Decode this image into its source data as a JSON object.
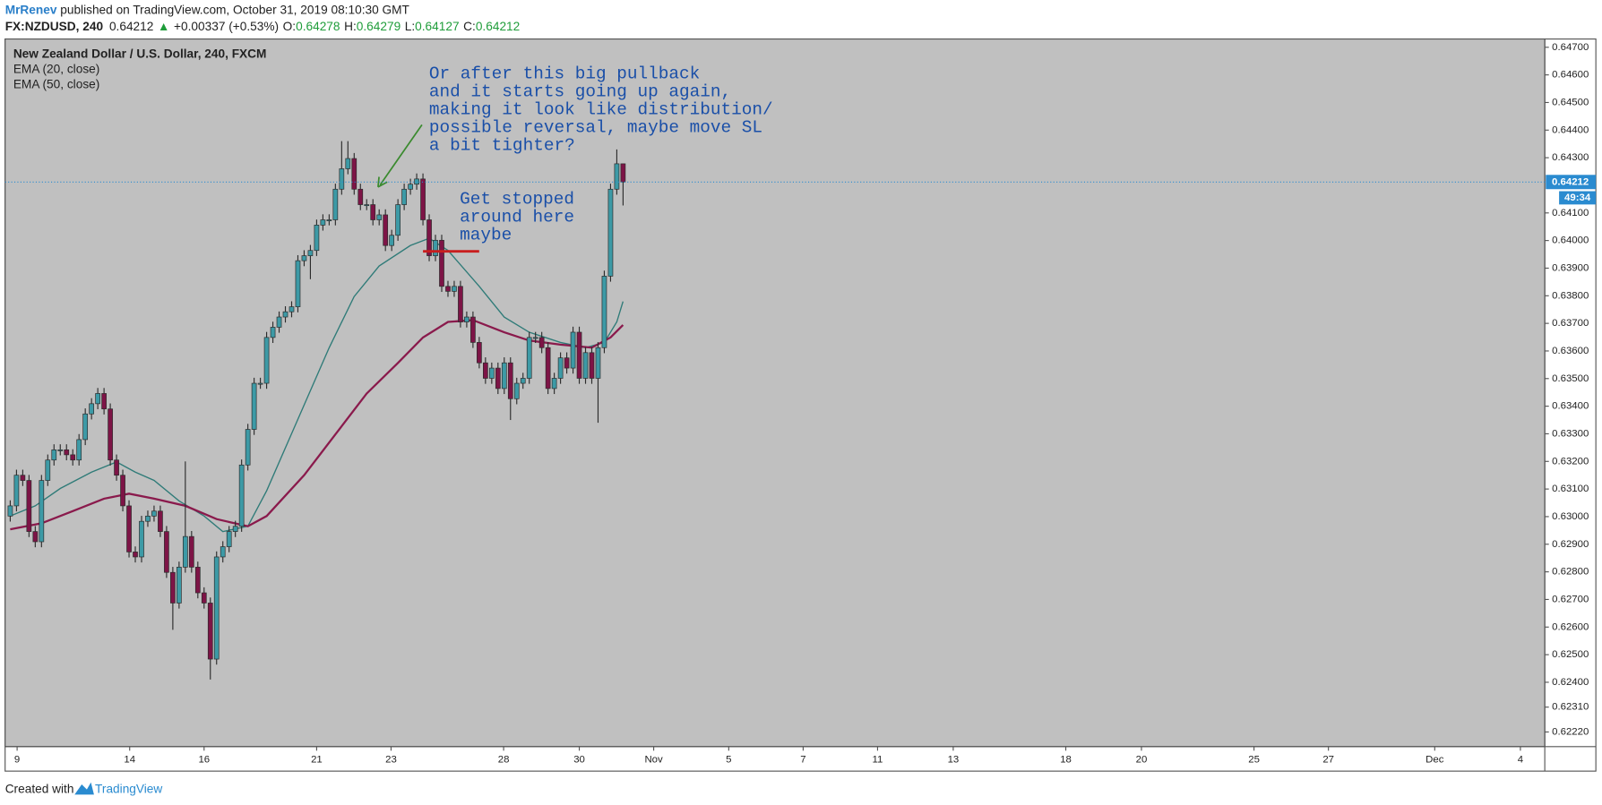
{
  "header": {
    "author": "MrRenev",
    "published_text": " published on TradingView.com, October 31, 2019 08:10:30 GMT",
    "symbol": "FX:NZDUSD, 240",
    "last": "0.64212",
    "change_arrow": "▲",
    "change": "+0.00337 (+0.53%)",
    "ohlc": [
      {
        "label": "O:",
        "value": "0.64278"
      },
      {
        "label": "H:",
        "value": "0.64279"
      },
      {
        "label": "L:",
        "value": "0.64127"
      },
      {
        "label": "C:",
        "value": "0.64212"
      }
    ]
  },
  "footer": {
    "created_with": "Created with",
    "brand": "TradingView"
  },
  "chart_data": {
    "type": "candlestick",
    "title": "New Zealand Dollar / U.S. Dollar, 240, FXCM",
    "up_color": "#3d9aa6",
    "down_color": "#7d1446",
    "wick_color": "#2b2b2b",
    "open": [
      0.63002,
      0.63039,
      0.6315,
      0.63131,
      0.62946,
      0.62909,
      0.63131,
      0.63205,
      0.63242,
      0.63242,
      0.63224,
      0.63205,
      0.63279,
      0.63372,
      0.63409,
      0.63446,
      0.6339,
      0.63205,
      0.6315,
      0.63039,
      0.62872,
      0.62854,
      0.62983,
      0.63002,
      0.6302,
      0.62946,
      0.62798,
      0.62687,
      0.62817,
      0.62928,
      0.62817,
      0.62724,
      0.62687,
      0.62484,
      0.62854,
      0.62891,
      0.62946,
      0.62965,
      0.63187,
      0.63316,
      0.63483,
      0.63483,
      0.63649,
      0.63686,
      0.63723,
      0.63742,
      0.6376,
      0.63927,
      0.63945,
      0.63964,
      0.64056,
      0.64075,
      0.64075,
      0.64186,
      0.6426,
      0.64297,
      0.64186,
      0.6413,
      0.6413,
      0.64075,
      0.64093,
      0.63982,
      0.64019,
      0.6413,
      0.64186,
      0.64204,
      0.64223,
      0.64075,
      0.63945,
      0.64001,
      0.63834,
      0.63816,
      0.63834,
      0.63705,
      0.63723,
      0.63631,
      0.63557,
      0.63501,
      0.63538,
      0.63464,
      0.63557,
      0.63427,
      0.63483,
      0.63501,
      0.63649,
      0.63649,
      0.63612,
      0.63464,
      0.63501,
      0.63575,
      0.63538,
      0.63668,
      0.63501,
      0.63594,
      0.63501,
      0.63612,
      0.63871,
      0.64186,
      0.64278
    ],
    "high": [
      0.63059,
      0.6317,
      0.6317,
      0.63151,
      0.62966,
      0.63151,
      0.63225,
      0.63262,
      0.63262,
      0.63262,
      0.63244,
      0.63299,
      0.63392,
      0.63429,
      0.63466,
      0.63466,
      0.6341,
      0.63225,
      0.6317,
      0.63059,
      0.62892,
      0.63003,
      0.63022,
      0.6304,
      0.6304,
      0.62966,
      0.62818,
      0.62837,
      0.632,
      0.62948,
      0.62837,
      0.62744,
      0.62707,
      0.62874,
      0.62911,
      0.62966,
      0.62985,
      0.63207,
      0.63336,
      0.63503,
      0.63503,
      0.63669,
      0.63706,
      0.63743,
      0.63762,
      0.6378,
      0.63947,
      0.63965,
      0.63984,
      0.64076,
      0.64095,
      0.64095,
      0.64206,
      0.6436,
      0.6436,
      0.64317,
      0.64206,
      0.6415,
      0.6415,
      0.64113,
      0.64113,
      0.64039,
      0.6415,
      0.64206,
      0.64224,
      0.64243,
      0.64243,
      0.64095,
      0.64021,
      0.64021,
      0.63854,
      0.63854,
      0.63854,
      0.63743,
      0.63743,
      0.63651,
      0.63577,
      0.63558,
      0.63558,
      0.63577,
      0.63577,
      0.63503,
      0.63521,
      0.63669,
      0.63669,
      0.63669,
      0.63632,
      0.63521,
      0.63595,
      0.63595,
      0.63688,
      0.63688,
      0.63614,
      0.63614,
      0.63632,
      0.63891,
      0.64206,
      0.6433,
      0.64279
    ],
    "low": [
      0.62982,
      0.63019,
      0.63111,
      0.62926,
      0.62889,
      0.62889,
      0.63111,
      0.63185,
      0.63222,
      0.63204,
      0.63185,
      0.63185,
      0.63259,
      0.63352,
      0.63389,
      0.6337,
      0.63185,
      0.6313,
      0.63019,
      0.62852,
      0.62834,
      0.62834,
      0.62963,
      0.62982,
      0.62926,
      0.62778,
      0.6259,
      0.62667,
      0.62797,
      0.62797,
      0.62704,
      0.62667,
      0.6241,
      0.62464,
      0.62834,
      0.62871,
      0.62926,
      0.62945,
      0.63167,
      0.63296,
      0.63463,
      0.63463,
      0.63629,
      0.63666,
      0.63703,
      0.63722,
      0.6374,
      0.63907,
      0.6386,
      0.63944,
      0.64036,
      0.64055,
      0.64055,
      0.64166,
      0.6424,
      0.64166,
      0.6411,
      0.6411,
      0.64055,
      0.64055,
      0.63962,
      0.63962,
      0.63999,
      0.6411,
      0.64166,
      0.64184,
      0.64055,
      0.63925,
      0.63925,
      0.63814,
      0.63796,
      0.63796,
      0.63685,
      0.63685,
      0.63611,
      0.63537,
      0.63481,
      0.63481,
      0.63444,
      0.63444,
      0.6335,
      0.63407,
      0.63463,
      0.63481,
      0.63629,
      0.63592,
      0.63444,
      0.63444,
      0.63481,
      0.63518,
      0.63518,
      0.63481,
      0.63481,
      0.63481,
      0.6334,
      0.63592,
      0.63851,
      0.64166,
      0.64127
    ],
    "close": [
      0.63039,
      0.6315,
      0.63131,
      0.62946,
      0.62909,
      0.63131,
      0.63205,
      0.63242,
      0.63242,
      0.63224,
      0.63205,
      0.63279,
      0.63372,
      0.63409,
      0.63446,
      0.6339,
      0.63205,
      0.6315,
      0.63039,
      0.62872,
      0.62854,
      0.62983,
      0.63002,
      0.6302,
      0.62946,
      0.62798,
      0.62687,
      0.62817,
      0.62928,
      0.62817,
      0.62724,
      0.62687,
      0.62484,
      0.62854,
      0.62891,
      0.62946,
      0.62965,
      0.63187,
      0.63316,
      0.63483,
      0.63483,
      0.63649,
      0.63686,
      0.63723,
      0.63742,
      0.6376,
      0.63927,
      0.63945,
      0.63964,
      0.64056,
      0.64075,
      0.64075,
      0.64186,
      0.6426,
      0.64297,
      0.64186,
      0.6413,
      0.6413,
      0.64075,
      0.64093,
      0.63982,
      0.64019,
      0.6413,
      0.64186,
      0.64204,
      0.64223,
      0.64075,
      0.63945,
      0.64001,
      0.63834,
      0.63816,
      0.63834,
      0.63705,
      0.63723,
      0.63631,
      0.63557,
      0.63501,
      0.63538,
      0.63464,
      0.63557,
      0.63427,
      0.63483,
      0.63501,
      0.63649,
      0.63649,
      0.63612,
      0.63464,
      0.63501,
      0.63575,
      0.63538,
      0.63668,
      0.63501,
      0.63594,
      0.63501,
      0.63612,
      0.63871,
      0.64186,
      0.64278,
      0.64212
    ],
    "series": [
      {
        "name": "EMA (20, close)",
        "color": "#2f7b78",
        "x": [
          0,
          4,
          8,
          13,
          17,
          20,
          23,
          27,
          31,
          34,
          38,
          41,
          46,
          51,
          55,
          59,
          64,
          67,
          70,
          75,
          79,
          83,
          88,
          92,
          95,
          97,
          98
        ],
        "values": [
          0.63002,
          0.63039,
          0.63102,
          0.63161,
          0.63198,
          0.63161,
          0.63131,
          0.63057,
          0.63002,
          0.62946,
          0.62965,
          0.63094,
          0.63353,
          0.63612,
          0.63797,
          0.63908,
          0.63982,
          0.64008,
          0.63964,
          0.63834,
          0.63723,
          0.63668,
          0.63631,
          0.63612,
          0.63631,
          0.63705,
          0.63779
        ]
      },
      {
        "name": "EMA (50, close)",
        "color": "#8a1a4c",
        "x": [
          0,
          5,
          10,
          15,
          19,
          23,
          28,
          33,
          38,
          41,
          47,
          52,
          57,
          62,
          66,
          70,
          74,
          79,
          83,
          88,
          93,
          96,
          98
        ],
        "values": [
          0.62954,
          0.62976,
          0.6302,
          0.63065,
          0.63083,
          0.63065,
          0.63039,
          0.62991,
          0.62965,
          0.63002,
          0.6315,
          0.63298,
          0.63446,
          0.63557,
          0.63649,
          0.63705,
          0.63712,
          0.63668,
          0.63638,
          0.63623,
          0.63612,
          0.63649,
          0.63694
        ]
      }
    ],
    "ylim": [
      0.62167,
      0.6473
    ],
    "yticks": [
      {
        "value": 0.647,
        "label": "0.64700"
      },
      {
        "value": 0.646,
        "label": "0.64600"
      },
      {
        "value": 0.645,
        "label": "0.64500"
      },
      {
        "value": 0.644,
        "label": "0.64400"
      },
      {
        "value": 0.643,
        "label": "0.64300"
      },
      {
        "value": 0.641,
        "label": "0.64100"
      },
      {
        "value": 0.64,
        "label": "0.64000"
      },
      {
        "value": 0.639,
        "label": "0.63900"
      },
      {
        "value": 0.638,
        "label": "0.63800"
      },
      {
        "value": 0.637,
        "label": "0.63700"
      },
      {
        "value": 0.636,
        "label": "0.63600"
      },
      {
        "value": 0.635,
        "label": "0.63500"
      },
      {
        "value": 0.634,
        "label": "0.63400"
      },
      {
        "value": 0.633,
        "label": "0.63300"
      },
      {
        "value": 0.632,
        "label": "0.63200"
      },
      {
        "value": 0.631,
        "label": "0.63100"
      },
      {
        "value": 0.63,
        "label": "0.63000"
      },
      {
        "value": 0.629,
        "label": "0.62900"
      },
      {
        "value": 0.628,
        "label": "0.62800"
      },
      {
        "value": 0.627,
        "label": "0.62700"
      },
      {
        "value": 0.626,
        "label": "0.62600"
      },
      {
        "value": 0.625,
        "label": "0.62500"
      },
      {
        "value": 0.624,
        "label": "0.62400"
      },
      {
        "value": 0.6231,
        "label": "0.62310"
      },
      {
        "value": 0.6222,
        "label": "0.62220"
      }
    ],
    "xlim": [
      -0.82,
      245.4
    ],
    "xticks": [
      {
        "value": 1.1,
        "label": "9"
      },
      {
        "value": 19.1,
        "label": "14"
      },
      {
        "value": 31,
        "label": "16"
      },
      {
        "value": 49,
        "label": "21"
      },
      {
        "value": 60.9,
        "label": "23"
      },
      {
        "value": 78.9,
        "label": "28"
      },
      {
        "value": 91,
        "label": "30"
      },
      {
        "value": 102.9,
        "label": "Nov"
      },
      {
        "value": 114.9,
        "label": "5"
      },
      {
        "value": 126.8,
        "label": "7"
      },
      {
        "value": 138.7,
        "label": "11"
      },
      {
        "value": 150.8,
        "label": "13"
      },
      {
        "value": 168.8,
        "label": "18"
      },
      {
        "value": 180.9,
        "label": "20"
      },
      {
        "value": 198.9,
        "label": "25"
      },
      {
        "value": 210.8,
        "label": "27"
      },
      {
        "value": 227.8,
        "label": "Dec"
      },
      {
        "value": 241.5,
        "label": "4"
      }
    ],
    "price_line": {
      "value": 0.64212,
      "label": "0.64212",
      "color": "#2a8bd0"
    },
    "countdown": "49:34",
    "grid": false,
    "annotations": [
      {
        "lines": [
          "Or after this big pullback",
          "and it starts going up again,",
          "making it look like distribution/",
          "possible reversal, maybe move SL",
          "a bit tighter?"
        ]
      },
      {
        "lines": [
          "Get stopped",
          "around here",
          "maybe"
        ]
      }
    ]
  }
}
